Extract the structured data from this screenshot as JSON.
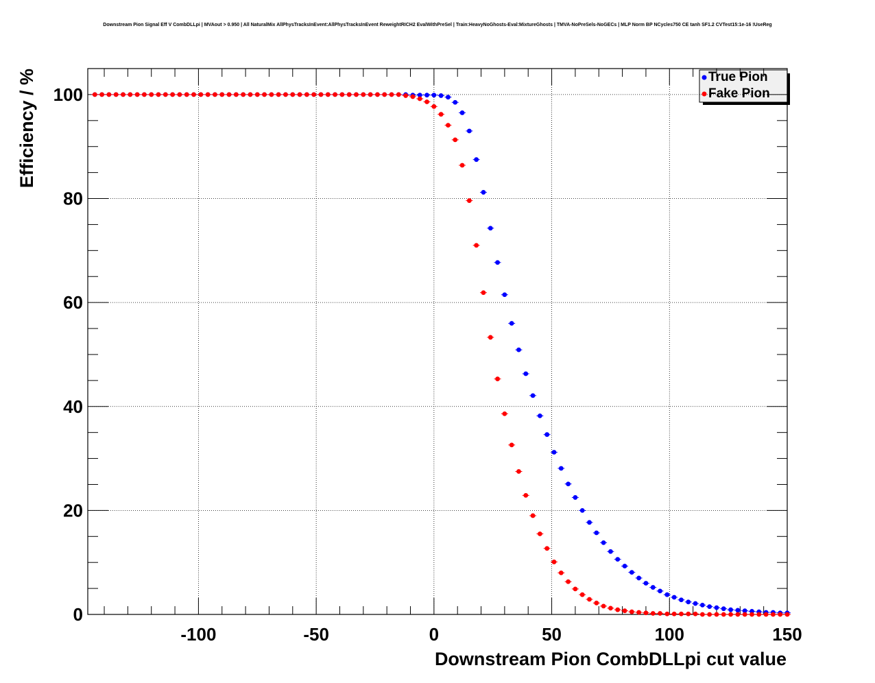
{
  "title": "Downstream Pion Signal Eff V CombDLLpi | MVAout > 0.950 | All NaturalMix AllPhysTracksInEvent:AllPhysTracksInEvent ReweightRICH2 EvalWithPreSel | Train:HeavyNoGhosts-Eval:MixtureGhosts | TMVA-NoPreSels-NoGECs | MLP Norm BP NCycles750 CE tanh SF1.2 CVTest15:1e-16 !UseReg",
  "chart_data": {
    "type": "scatter",
    "title": "Downstream Pion Signal Eff V CombDLLpi | MVAout > 0.950 | All NaturalMix AllPhysTracksInEvent:AllPhysTracksInEvent ReweightRICH2 EvalWithPreSel | Train:HeavyNoGhosts-Eval:MixtureGhosts | TMVA-NoPreSels-NoGECs | MLP Norm BP NCycles750 CE tanh SF1.2 CVTest15:1e-16 !UseReg",
    "xlabel": "Downstream Pion CombDLLpi cut value",
    "ylabel": "Efficiency / %",
    "xlim": [
      -147,
      150
    ],
    "ylim": [
      0,
      105
    ],
    "x_ticks": [
      -100,
      -50,
      0,
      50,
      100,
      150
    ],
    "x_tick_labels": [
      "-100",
      "-50",
      "0",
      "50",
      "100",
      "150"
    ],
    "y_ticks": [
      0,
      20,
      40,
      60,
      80,
      100
    ],
    "y_tick_labels": [
      "0",
      "20",
      "40",
      "60",
      "80",
      "100"
    ],
    "grid": true,
    "legend_position": "top-right",
    "x": [
      -144,
      -141,
      -138,
      -135,
      -132,
      -129,
      -126,
      -123,
      -120,
      -117,
      -114,
      -111,
      -108,
      -105,
      -102,
      -99,
      -96,
      -93,
      -90,
      -87,
      -84,
      -81,
      -78,
      -75,
      -72,
      -69,
      -66,
      -63,
      -60,
      -57,
      -54,
      -51,
      -48,
      -45,
      -42,
      -39,
      -36,
      -33,
      -30,
      -27,
      -24,
      -21,
      -18,
      -15,
      -12,
      -9,
      -6,
      -3,
      0,
      3,
      6,
      9,
      12,
      15,
      18,
      21,
      24,
      27,
      30,
      33,
      36,
      39,
      42,
      45,
      48,
      51,
      54,
      57,
      60,
      63,
      66,
      69,
      72,
      75,
      78,
      81,
      84,
      87,
      90,
      93,
      96,
      99,
      102,
      105,
      108,
      111,
      114,
      117,
      120,
      123,
      126,
      129,
      132,
      135,
      138,
      141,
      144,
      147,
      150
    ],
    "series": [
      {
        "name": "True Pion",
        "color": "#0000ff",
        "values": [
          100,
          100,
          100,
          100,
          100,
          100,
          100,
          100,
          100,
          100,
          100,
          100,
          100,
          100,
          100,
          100,
          100,
          100,
          100,
          100,
          100,
          100,
          100,
          100,
          100,
          100,
          100,
          100,
          100,
          100,
          100,
          100,
          100,
          100,
          100,
          100,
          100,
          100,
          100,
          100,
          100,
          100,
          100,
          100,
          100,
          99.9,
          99.9,
          99.9,
          99.9,
          99.8,
          99.5,
          98.5,
          96.5,
          93,
          87.5,
          81.2,
          74.3,
          67.7,
          61.5,
          56,
          50.9,
          46.3,
          42.1,
          38.2,
          34.6,
          31.2,
          28.1,
          25.1,
          22.5,
          20,
          17.7,
          15.7,
          13.8,
          12.1,
          10.6,
          9.3,
          8.1,
          7,
          6,
          5.2,
          4.5,
          3.8,
          3.3,
          2.8,
          2.4,
          2.1,
          1.8,
          1.5,
          1.3,
          1.1,
          0.9,
          0.8,
          0.7,
          0.6,
          0.5,
          0.4,
          0.4,
          0.3,
          0.3
        ]
      },
      {
        "name": "Fake Pion",
        "color": "#ff0000",
        "values": [
          100,
          100,
          100,
          100,
          100,
          100,
          100,
          100,
          100,
          100,
          100,
          100,
          100,
          100,
          100,
          100,
          100,
          100,
          100,
          100,
          100,
          100,
          100,
          100,
          100,
          100,
          100,
          100,
          100,
          100,
          100,
          100,
          100,
          100,
          100,
          100,
          100,
          100,
          100,
          100,
          100,
          100,
          100,
          100,
          99.8,
          99.6,
          99.2,
          98.6,
          97.7,
          96.2,
          94.1,
          91.3,
          86.4,
          79.6,
          71,
          61.9,
          53.3,
          45.3,
          38.6,
          32.6,
          27.5,
          22.9,
          19,
          15.5,
          12.7,
          10.1,
          8,
          6.3,
          4.9,
          3.8,
          2.9,
          2.2,
          1.6,
          1.2,
          0.9,
          0.7,
          0.5,
          0.4,
          0.3,
          0.2,
          0.2,
          0.1,
          0.1,
          0.1,
          0.1,
          0.1,
          0,
          0,
          0,
          0,
          0,
          0,
          0,
          0,
          0,
          0,
          0,
          0,
          0
        ]
      }
    ]
  }
}
